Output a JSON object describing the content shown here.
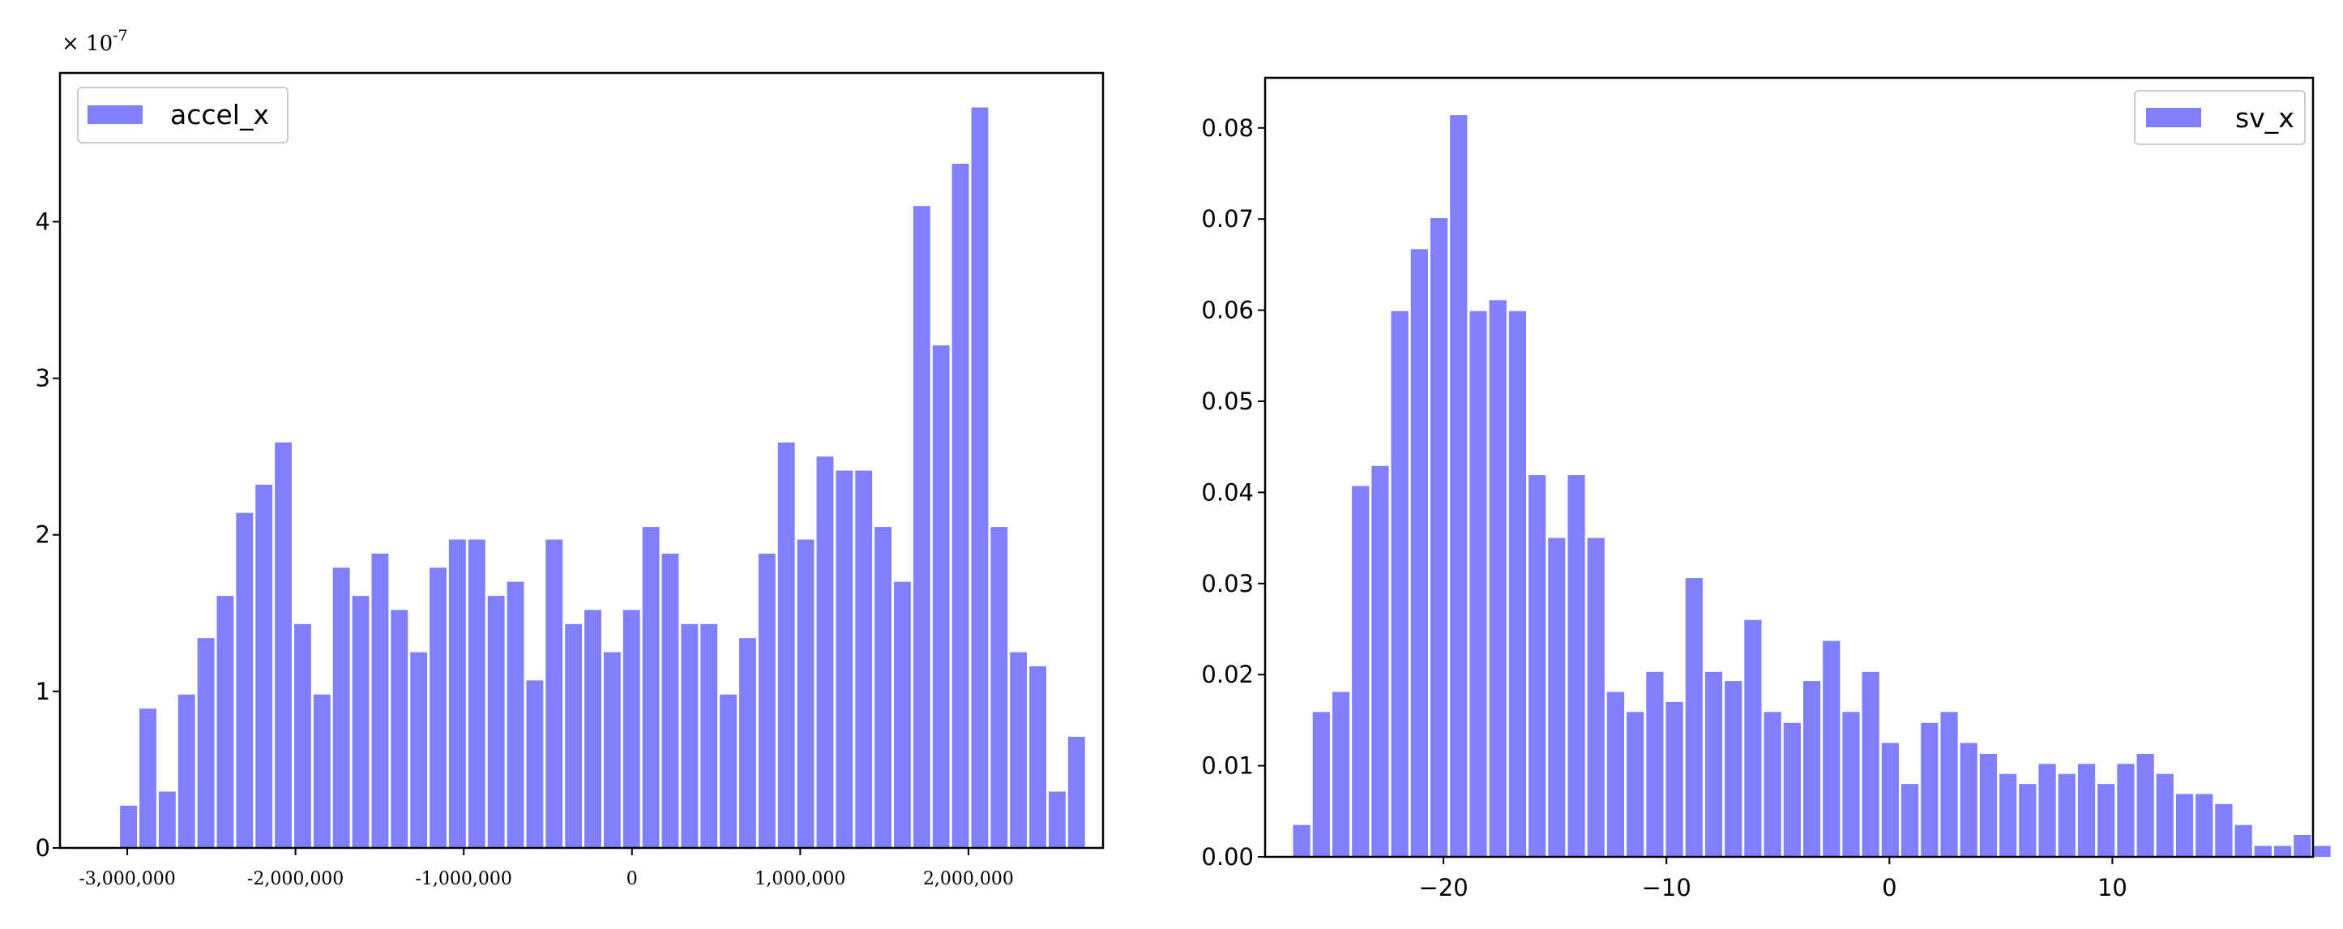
{
  "chart_data": [
    {
      "type": "bar",
      "chart": "histogram",
      "series": [
        {
          "name": "accel_x",
          "color": "#8080ff"
        }
      ],
      "scale_label": {
        "prefix": "× 10",
        "exponent": "-7"
      },
      "x_tick_labels": [
        "-3,000,000",
        "-2,000,000",
        "-1,000,000",
        "0",
        "1,000,000",
        "2,000,000"
      ],
      "y_tick_labels": [
        "0",
        "1",
        "2",
        "3",
        "4"
      ],
      "xlim": [
        -3400000,
        2800000
      ],
      "ylim": [
        0,
        4.95
      ],
      "bin_start": -3050000,
      "bin_width": 115000,
      "values": [
        0.27,
        0.89,
        0.36,
        0.98,
        1.34,
        1.61,
        2.14,
        2.32,
        2.59,
        1.43,
        0.98,
        1.79,
        1.61,
        1.88,
        1.52,
        1.25,
        1.79,
        1.97,
        1.97,
        1.61,
        1.7,
        1.07,
        1.97,
        1.43,
        1.52,
        1.25,
        1.52,
        2.05,
        1.88,
        1.43,
        1.43,
        0.98,
        1.34,
        1.88,
        2.59,
        1.97,
        2.5,
        2.41,
        2.41,
        2.05,
        1.7,
        4.1,
        3.21,
        4.37,
        4.73,
        2.05,
        1.25,
        1.16,
        0.36,
        0.71
      ],
      "legend_position": "upper left",
      "grid": false
    },
    {
      "type": "bar",
      "chart": "histogram",
      "series": [
        {
          "name": "sv_x",
          "color": "#8080ff"
        }
      ],
      "x_tick_labels": [
        "−20",
        "−10",
        "0",
        "10"
      ],
      "y_tick_labels": [
        "0.00",
        "0.01",
        "0.02",
        "0.03",
        "0.04",
        "0.05",
        "0.06",
        "0.07",
        "0.08"
      ],
      "xlim": [
        -28.0,
        19.0
      ],
      "ylim": [
        0,
        0.0855
      ],
      "bin_start": -26.8,
      "bin_width": 0.88,
      "values": [
        0.0035,
        0.0159,
        0.0181,
        0.0407,
        0.0429,
        0.0599,
        0.0667,
        0.0701,
        0.0814,
        0.0599,
        0.0611,
        0.0599,
        0.0419,
        0.035,
        0.0419,
        0.035,
        0.0181,
        0.0159,
        0.0203,
        0.017,
        0.0306,
        0.0203,
        0.0193,
        0.026,
        0.0159,
        0.0147,
        0.0193,
        0.0237,
        0.0159,
        0.0203,
        0.0125,
        0.008,
        0.0147,
        0.0159,
        0.0125,
        0.0113,
        0.0091,
        0.008,
        0.0102,
        0.0091,
        0.0102,
        0.008,
        0.0102,
        0.0113,
        0.0091,
        0.0069,
        0.0069,
        0.0058,
        0.0035,
        0.0012,
        0.0012,
        0.0024,
        0.0012
      ],
      "legend_position": "upper right",
      "grid": false
    }
  ]
}
